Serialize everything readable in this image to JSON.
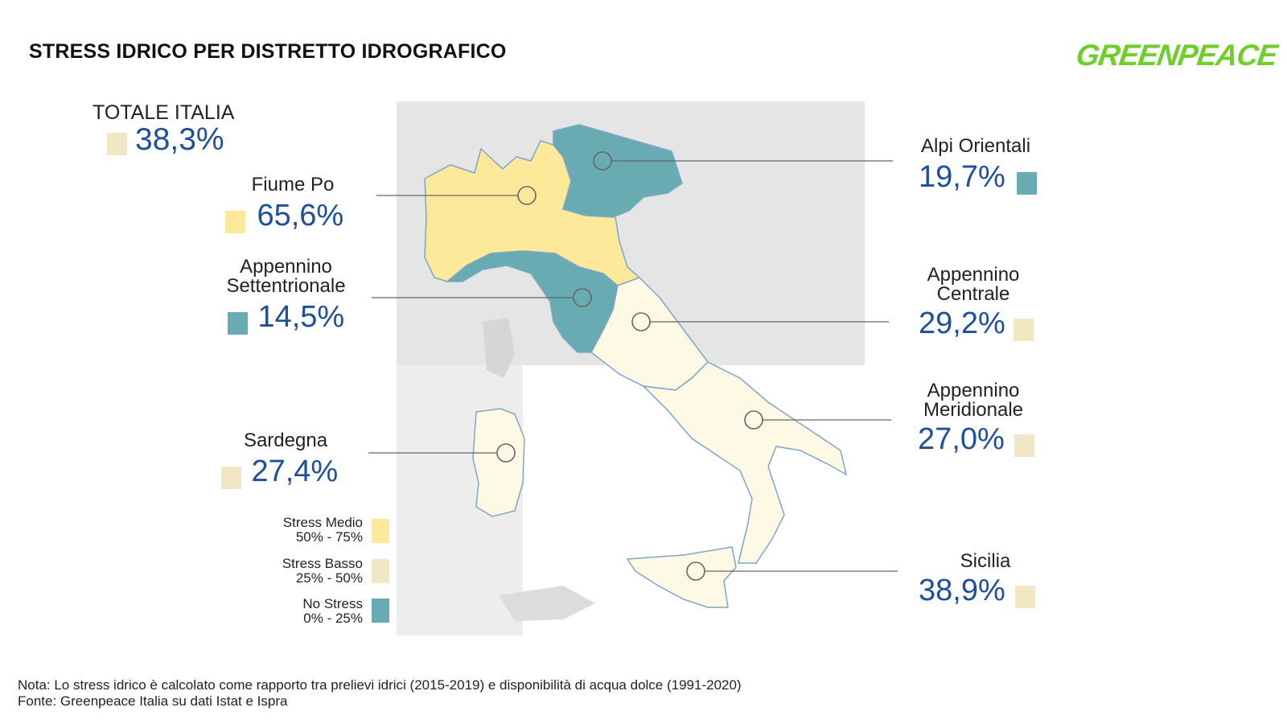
{
  "title": "STRESS IDRICO PER DISTRETTO IDROGRAFICO",
  "logo": "GREENPEACE",
  "colors": {
    "medium": "#fde99a",
    "low": "#f1e8c3",
    "none": "#69abb2",
    "low_map": "#fdf9e4",
    "value_text": "#1d4f9c",
    "logo": "#6fcf2a"
  },
  "total": {
    "label": "TOTALE ITALIA",
    "value": "38,3%"
  },
  "districts": {
    "fiume_po": {
      "name": "Fiume Po",
      "value": "65,6%"
    },
    "alpi_orientali": {
      "name": "Alpi Orientali",
      "value": "19,7%"
    },
    "appennino_settentrionale": {
      "name1": "Appennino",
      "name2": "Settentrionale",
      "value": "14,5%"
    },
    "appennino_centrale": {
      "name1": "Appennino",
      "name2": "Centrale",
      "value": "29,2%"
    },
    "appennino_meridionale": {
      "name1": "Appennino",
      "name2": "Meridionale",
      "value": "27,0%"
    },
    "sardegna": {
      "name": "Sardegna",
      "value": "27,4%"
    },
    "sicilia": {
      "name": "Sicilia",
      "value": "38,9%"
    }
  },
  "legend": [
    {
      "label": "Stress Medio",
      "range": "50% - 75%"
    },
    {
      "label": "Stress Basso",
      "range": "25% - 50%"
    },
    {
      "label": "No Stress",
      "range": "0% - 25%"
    }
  ],
  "note": "Nota: Lo stress idrico è calcolato come rapporto tra prelievi idrici (2015-2019) e disponibilità di acqua dolce (1991-2020)",
  "source": "Fonte: Greenpeace Italia su dati Istat e Ispra"
}
